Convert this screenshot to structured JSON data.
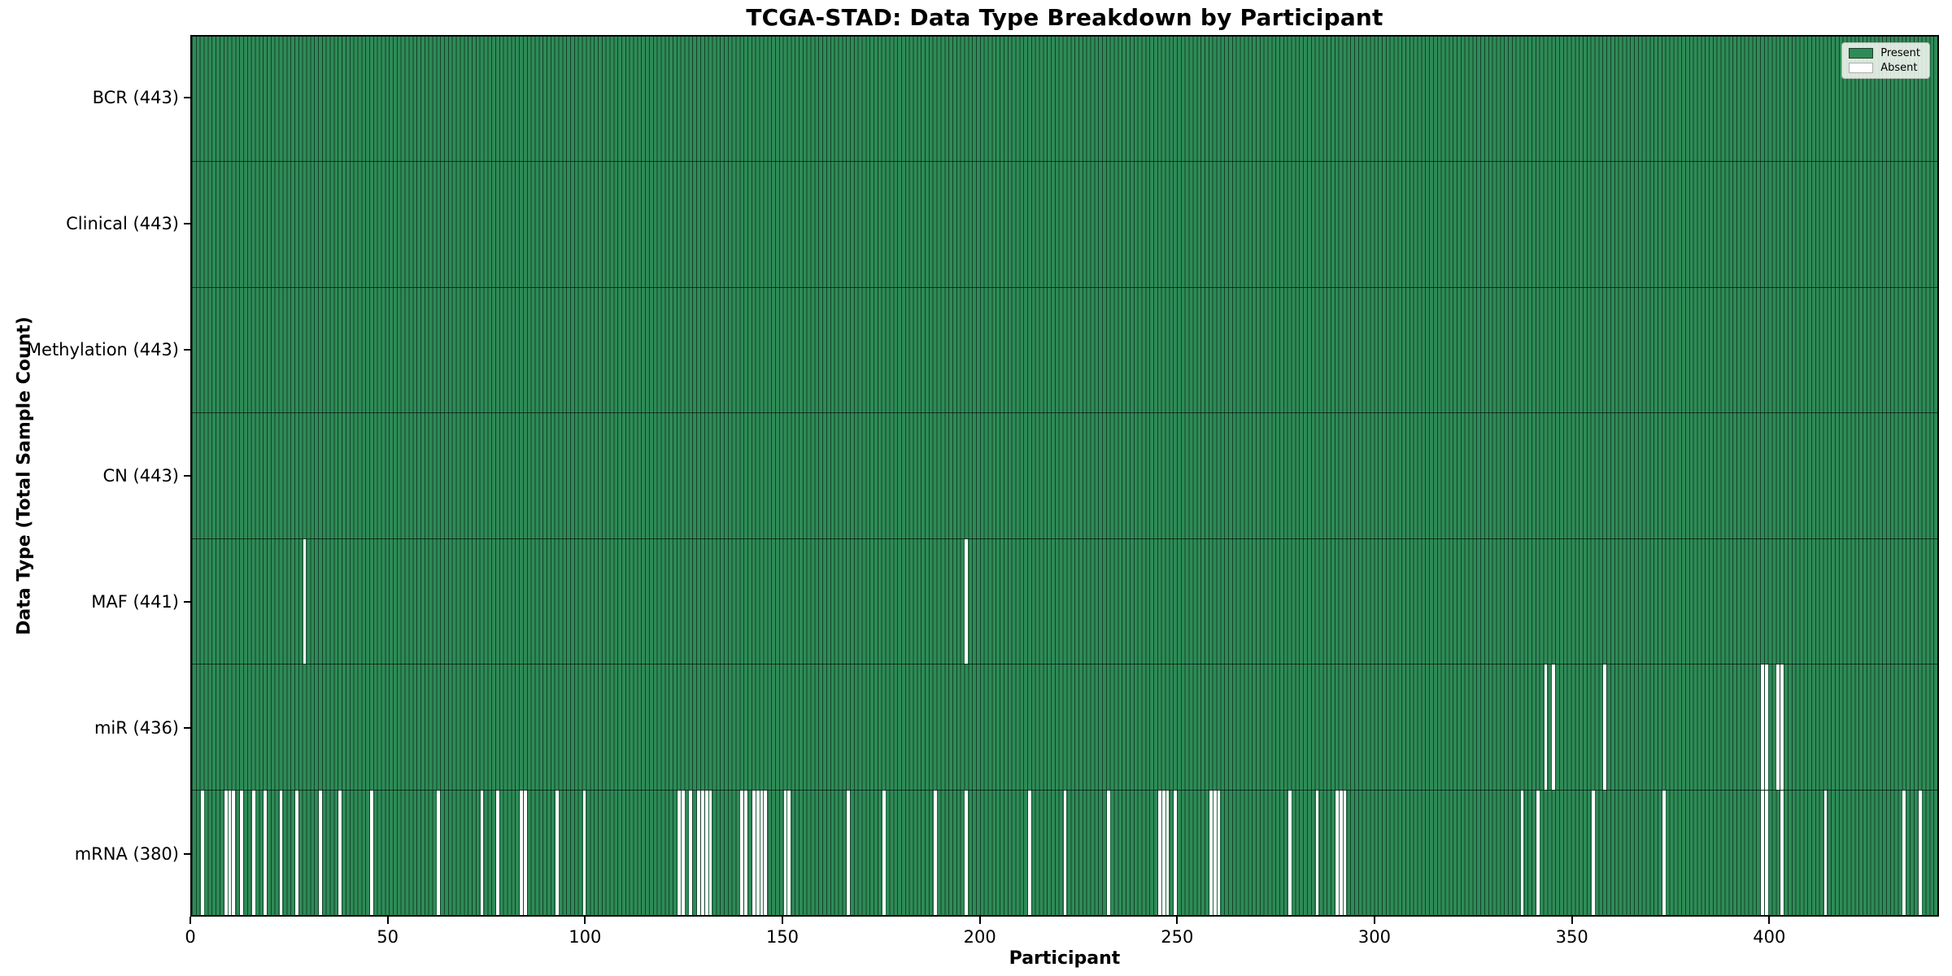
{
  "figure": {
    "title": "TCGA-STAD: Data Type Breakdown by Participant",
    "xlabel": "Participant",
    "ylabel": "Data Type (Total Sample Count)"
  },
  "colors": {
    "present": "#2e8b57",
    "absent": "#ffffff",
    "edge": "#15402a",
    "spine": "#000000"
  },
  "chart_data": {
    "type": "heatmap",
    "title": "TCGA-STAD: Data Type Breakdown by Participant",
    "xlabel": "Participant",
    "ylabel": "Data Type (Total Sample Count)",
    "n_participants": 443,
    "xlim": [
      0,
      443
    ],
    "x_ticks": [
      0,
      50,
      100,
      150,
      200,
      250,
      300,
      350,
      400
    ],
    "grid": false,
    "legend_labels": [
      "Present",
      "Absent"
    ],
    "legend_position": "upper-right",
    "categories": [
      "BCR",
      "Clinical",
      "Methylation",
      "CN",
      "MAF",
      "miR",
      "mRNA"
    ],
    "rows": [
      {
        "name": "BCR",
        "label": "BCR (443)",
        "present_count": 443,
        "absent_participants": []
      },
      {
        "name": "Clinical",
        "label": "Clinical (443)",
        "present_count": 443,
        "absent_participants": []
      },
      {
        "name": "Methylation",
        "label": "Methylation (443)",
        "present_count": 443,
        "absent_participants": []
      },
      {
        "name": "CN",
        "label": "CN (443)",
        "present_count": 443,
        "absent_participants": []
      },
      {
        "name": "MAF",
        "label": "MAF (441)",
        "present_count": 441,
        "absent_participants": [
          28,
          196
        ]
      },
      {
        "name": "miR",
        "label": "miR (436)",
        "present_count": 436,
        "absent_participants": [
          343,
          345,
          358,
          398,
          399,
          402,
          403
        ]
      },
      {
        "name": "mRNA",
        "label": "mRNA (380)",
        "present_count": 380,
        "absent_participants": [
          2,
          8,
          9,
          10,
          12,
          15,
          18,
          22,
          26,
          32,
          37,
          45,
          62,
          73,
          77,
          83,
          84,
          92,
          99,
          123,
          124,
          126,
          128,
          129,
          130,
          131,
          139,
          140,
          142,
          143,
          144,
          145,
          150,
          151,
          166,
          175,
          188,
          196,
          212,
          221,
          232,
          245,
          246,
          247,
          249,
          258,
          259,
          260,
          278,
          285,
          290,
          291,
          292,
          337,
          341,
          355,
          373,
          398,
          399,
          403,
          414,
          434,
          438
        ]
      }
    ]
  }
}
